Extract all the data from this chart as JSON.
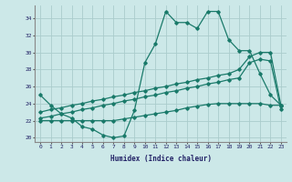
{
  "xlabel": "Humidex (Indice chaleur)",
  "bg_color": "#cce8e8",
  "grid_color": "#aacccc",
  "line_color": "#1a7a6a",
  "xlim": [
    -0.5,
    23.5
  ],
  "ylim": [
    19.5,
    35.5
  ],
  "xticks": [
    0,
    1,
    2,
    3,
    4,
    5,
    6,
    7,
    8,
    9,
    10,
    11,
    12,
    13,
    14,
    15,
    16,
    17,
    18,
    19,
    20,
    21,
    22,
    23
  ],
  "yticks": [
    20,
    22,
    24,
    26,
    28,
    30,
    32,
    34
  ],
  "s1_x": [
    0,
    1,
    2,
    3,
    4,
    5,
    6,
    7,
    8,
    9,
    10,
    11,
    12,
    13,
    14,
    15,
    16,
    17,
    18,
    19,
    20,
    21,
    22,
    23
  ],
  "s1_y": [
    25.0,
    23.8,
    22.8,
    22.3,
    21.3,
    21.0,
    20.3,
    20.0,
    20.2,
    23.2,
    28.8,
    31.0,
    34.8,
    33.5,
    33.5,
    32.8,
    34.8,
    34.8,
    31.5,
    30.2,
    30.2,
    27.5,
    25.0,
    23.8
  ],
  "s2_x": [
    0,
    1,
    2,
    3,
    4,
    5,
    6,
    7,
    8,
    9,
    10,
    11,
    12,
    13,
    14,
    15,
    16,
    17,
    18,
    19,
    20,
    21,
    22,
    23
  ],
  "s2_y": [
    23.0,
    23.3,
    23.5,
    23.8,
    24.0,
    24.3,
    24.5,
    24.8,
    25.0,
    25.3,
    25.5,
    25.8,
    26.0,
    26.3,
    26.5,
    26.8,
    27.0,
    27.3,
    27.5,
    28.0,
    29.5,
    30.0,
    30.0,
    23.8
  ],
  "s3_x": [
    0,
    1,
    2,
    3,
    4,
    5,
    6,
    7,
    8,
    9,
    10,
    11,
    12,
    13,
    14,
    15,
    16,
    17,
    18,
    19,
    20,
    21,
    22,
    23
  ],
  "s3_y": [
    22.3,
    22.5,
    22.8,
    23.0,
    23.3,
    23.5,
    23.8,
    24.0,
    24.3,
    24.5,
    24.8,
    25.0,
    25.3,
    25.5,
    25.8,
    26.0,
    26.3,
    26.5,
    26.8,
    27.0,
    28.8,
    29.2,
    29.0,
    23.3
  ],
  "s4_x": [
    0,
    1,
    2,
    3,
    4,
    5,
    6,
    7,
    8,
    9,
    10,
    11,
    12,
    13,
    14,
    15,
    16,
    17,
    18,
    19,
    20,
    21,
    22,
    23
  ],
  "s4_y": [
    22.0,
    22.0,
    22.0,
    22.0,
    22.0,
    22.0,
    22.0,
    22.0,
    22.2,
    22.4,
    22.6,
    22.8,
    23.0,
    23.2,
    23.5,
    23.7,
    23.9,
    24.0,
    24.0,
    24.0,
    24.0,
    24.0,
    23.8,
    23.8
  ]
}
